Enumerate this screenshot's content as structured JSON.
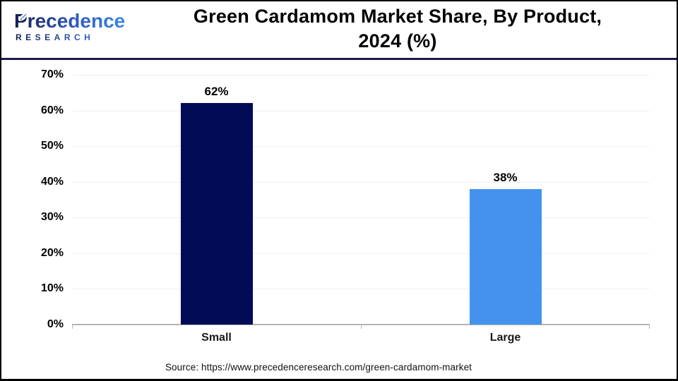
{
  "header": {
    "logo": {
      "name": "Precedence Research logo",
      "line1": "Precedence",
      "line2": "RESEARCH"
    },
    "title_line1": "Green Cardamom Market Share, By Product,",
    "title_line2": "2024 (%)"
  },
  "chart_data": {
    "type": "bar",
    "title": "Green Cardamom Market Share, By Product, 2024 (%)",
    "categories": [
      "Small",
      "Large"
    ],
    "values": [
      62,
      38
    ],
    "value_labels": [
      "62%",
      "38%"
    ],
    "bar_colors": [
      "#020b55",
      "#4592ee"
    ],
    "xlabel": "",
    "ylabel": "",
    "ylim": [
      0,
      70
    ],
    "ytick_step": 10,
    "ytick_labels": [
      "0%",
      "10%",
      "20%",
      "30%",
      "40%",
      "50%",
      "60%",
      "70%"
    ],
    "grid": true,
    "legend": false
  },
  "footer": {
    "source": "Source: https://www.precedenceresearch.com/green-cardamom-market"
  },
  "colors": {
    "bar_small": "#020b55",
    "bar_large": "#4592ee",
    "header_divider": "#1a1a4e",
    "gridline": "#f0f0f0",
    "axis_line": "#b3b3b3",
    "logo_gradient_start": "#151f52",
    "logo_gradient_end": "#3a86e8"
  }
}
